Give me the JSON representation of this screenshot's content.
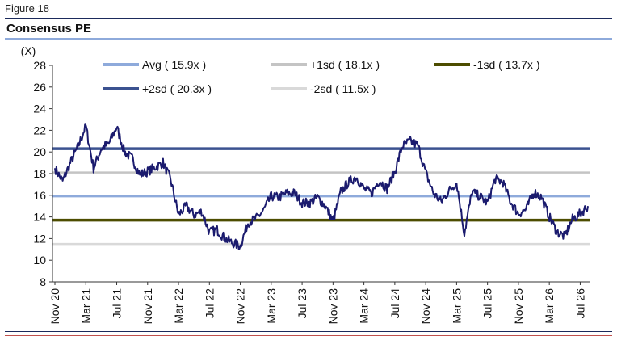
{
  "figure_label": "Figure 18",
  "chart_data": {
    "type": "line",
    "title": "Consensus PE",
    "ylabel": "(X)",
    "xlabel": "",
    "ylim": [
      8,
      28
    ],
    "yticks": [
      "28",
      "26",
      "24",
      "22",
      "20",
      "18",
      "16",
      "14",
      "12",
      "10",
      "8"
    ],
    "xticks": [
      "Nov 20",
      "Mar 21",
      "Jul 21",
      "Nov 21",
      "Mar 22",
      "Jul 22",
      "Nov 22",
      "Mar 23",
      "Jul 23",
      "Nov 23",
      "Mar 24",
      "Jul 24",
      "Nov 24",
      "Mar 25",
      "Jul 25",
      "Nov 25",
      "Mar 26",
      "Jul 26"
    ],
    "grid": false,
    "legend_position": "top",
    "reference_lines": [
      {
        "label": "Avg ( 15.9x )",
        "value": 15.9,
        "color": "#8eaadb"
      },
      {
        "label": "+1sd ( 18.1x )",
        "value": 18.1,
        "color": "#c4c4c4"
      },
      {
        "label": "-1sd ( 13.7x )",
        "value": 13.7,
        "color": "#4d4d00"
      },
      {
        "label": "+2sd ( 20.3x )",
        "value": 20.3,
        "color": "#3b5290"
      },
      {
        "label": "-2sd ( 11.5x )",
        "value": 11.5,
        "color": "#d9d9d9"
      }
    ],
    "series": [
      {
        "color": "#1b1b6e",
        "x": [
          "2020-11",
          "2020-12",
          "2021-01",
          "2021-02",
          "2021-03",
          "2021-04",
          "2021-05",
          "2021-06",
          "2021-07",
          "2021-08",
          "2021-09",
          "2021-10",
          "2021-11",
          "2021-12",
          "2022-01",
          "2022-02",
          "2022-03",
          "2022-04",
          "2022-05",
          "2022-06",
          "2022-07",
          "2022-08",
          "2022-09",
          "2022-10",
          "2022-11",
          "2022-12",
          "2023-01",
          "2023-02",
          "2023-03",
          "2023-04",
          "2023-05",
          "2023-06",
          "2023-07",
          "2023-08",
          "2023-09",
          "2023-10",
          "2023-11",
          "2023-12",
          "2024-01",
          "2024-02",
          "2024-03",
          "2024-04",
          "2024-05",
          "2024-06",
          "2024-07",
          "2024-08",
          "2024-09",
          "2024-10",
          "2024-11",
          "2024-12",
          "2025-01",
          "2025-02",
          "2025-03",
          "2025-04",
          "2025-05",
          "2025-06",
          "2025-07",
          "2025-08",
          "2025-09",
          "2025-10",
          "2025-11",
          "2025-12",
          "2026-01",
          "2026-02",
          "2026-03",
          "2026-04",
          "2026-05",
          "2026-06",
          "2026-07",
          "2026-08"
        ],
        "values": [
          18.5,
          17.3,
          19.0,
          20.5,
          22.4,
          18.5,
          20.3,
          20.8,
          22.3,
          20.0,
          19.4,
          17.9,
          18.2,
          18.6,
          19.0,
          17.4,
          14.2,
          15.0,
          14.2,
          14.5,
          12.6,
          12.8,
          12.0,
          11.6,
          11.3,
          13.5,
          13.8,
          14.6,
          15.9,
          15.8,
          16.2,
          16.2,
          15.3,
          15.3,
          15.8,
          15.0,
          13.6,
          16.3,
          17.2,
          17.7,
          16.6,
          16.2,
          17.4,
          16.6,
          18.2,
          20.6,
          21.0,
          20.6,
          18.1,
          16.2,
          15.4,
          16.4,
          17.2,
          12.5,
          16.3,
          15.9,
          15.3,
          17.5,
          17.2,
          15.4,
          14.3,
          14.7,
          16.3,
          15.8,
          14.0,
          12.6,
          12.2,
          13.8,
          14.3,
          15.0
        ]
      }
    ]
  }
}
